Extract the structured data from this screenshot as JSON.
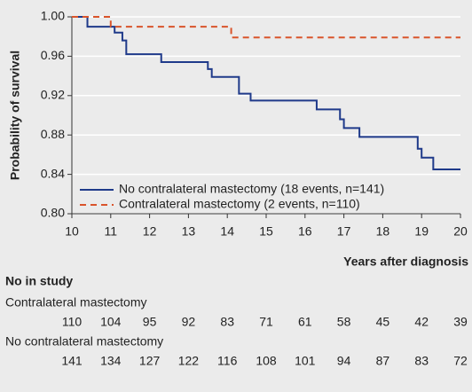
{
  "chart_data": {
    "type": "step",
    "ylabel": "Probability of survival",
    "xlabel": "Years after diagnosis",
    "xlim": [
      10,
      20
    ],
    "xticks": [
      10,
      11,
      12,
      13,
      14,
      15,
      16,
      17,
      18,
      19,
      20
    ],
    "ylim": [
      0.8,
      1.0
    ],
    "yticks": [
      {
        "value": 0.8,
        "label": "0.80"
      },
      0.84,
      0.88,
      0.92,
      0.96,
      {
        "value": 1.0,
        "label": "1.00"
      }
    ],
    "grid": true,
    "series": [
      {
        "name": "No contralateral mastectomy (18 events, n=141)",
        "color": "#1f3a8a",
        "dash": false,
        "x": [
          10,
          10.4,
          11.1,
          11.3,
          11.4,
          12.3,
          13.5,
          13.6,
          14.3,
          14.6,
          16.3,
          16.9,
          17.0,
          17.4,
          18.9,
          19.0,
          19.3,
          20
        ],
        "values": [
          1.0,
          0.99,
          0.984,
          0.976,
          0.962,
          0.954,
          0.947,
          0.939,
          0.922,
          0.915,
          0.906,
          0.896,
          0.887,
          0.878,
          0.866,
          0.857,
          0.845,
          0.845
        ]
      },
      {
        "name": "Contralateral mastectomy (2 events, n=110)",
        "color": "#d9542b",
        "dash": true,
        "x": [
          10,
          11.0,
          14.1,
          20
        ],
        "values": [
          1.0,
          0.99,
          0.979,
          0.979
        ]
      }
    ],
    "risk_table": {
      "title": "No in study",
      "years": [
        10,
        11,
        12,
        13,
        14,
        15,
        16,
        17,
        18,
        19,
        20
      ],
      "rows": [
        {
          "name": "Contralateral mastectomy",
          "values": [
            110,
            104,
            95,
            92,
            83,
            71,
            61,
            58,
            45,
            42,
            39
          ]
        },
        {
          "name": "No contralateral mastectomy",
          "values": [
            141,
            134,
            127,
            122,
            116,
            108,
            101,
            94,
            87,
            83,
            72
          ]
        }
      ]
    }
  }
}
